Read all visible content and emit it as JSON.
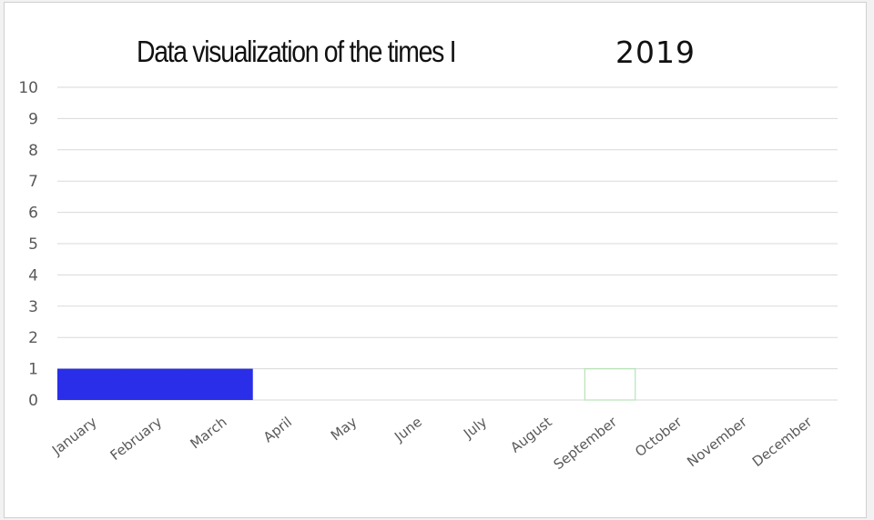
{
  "chart_data": {
    "type": "bar",
    "title": "Data visualization of the times I",
    "title_year": "2019",
    "categories": [
      "January",
      "February",
      "March",
      "April",
      "May",
      "June",
      "July",
      "August",
      "September",
      "October",
      "November",
      "December"
    ],
    "series": [
      {
        "values": [
          1,
          1,
          1,
          0,
          0,
          0,
          0,
          0,
          1,
          0,
          0,
          0
        ],
        "colors": [
          "#2a2ee8",
          "#2a2ee8",
          "#2a2ee8",
          "#2a2ee8",
          "#2a2ee8",
          "#2a2ee8",
          "#2a2ee8",
          "#2a2ee8",
          "outline-green",
          "#2a2ee8",
          "#2a2ee8",
          "#2a2ee8"
        ]
      }
    ],
    "ylim": [
      0,
      10
    ],
    "yticks": [
      0,
      1,
      2,
      3,
      4,
      5,
      6,
      7,
      8,
      9,
      10
    ],
    "grid": true,
    "xlabel": "",
    "ylabel": ""
  },
  "colors": {
    "bar": "#2a2ee8",
    "grid": "#d9d9d9",
    "outline_bar": "#b6e3b6"
  }
}
